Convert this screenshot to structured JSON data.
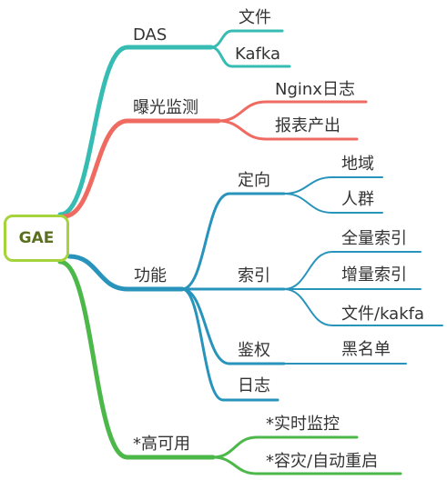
{
  "root": {
    "label": "GAE",
    "border_color": "#a4d33c"
  },
  "colors": {
    "teal": "#36bcb3",
    "red": "#ef6b61",
    "blue": "#2894bb",
    "green": "#4cb849"
  },
  "branches": [
    {
      "label": "DAS",
      "color": "teal",
      "children": [
        {
          "label": "文件"
        },
        {
          "label": "Kafka"
        }
      ]
    },
    {
      "label": "曝光监测",
      "color": "red",
      "children": [
        {
          "label": "Nginx日志"
        },
        {
          "label": "报表产出"
        }
      ]
    },
    {
      "label": "功能",
      "color": "blue",
      "children": [
        {
          "label": "定向",
          "children": [
            {
              "label": "地域"
            },
            {
              "label": "人群"
            }
          ]
        },
        {
          "label": "索引",
          "children": [
            {
              "label": "全量索引"
            },
            {
              "label": "增量索引"
            },
            {
              "label": "文件/kakfa"
            }
          ]
        },
        {
          "label": "鉴权",
          "children": [
            {
              "label": "黑名单"
            }
          ]
        },
        {
          "label": "日志"
        }
      ]
    },
    {
      "label": "*高可用",
      "color": "green",
      "children": [
        {
          "label": "*实时监控"
        },
        {
          "label": "*容灾/自动重启"
        }
      ]
    }
  ]
}
